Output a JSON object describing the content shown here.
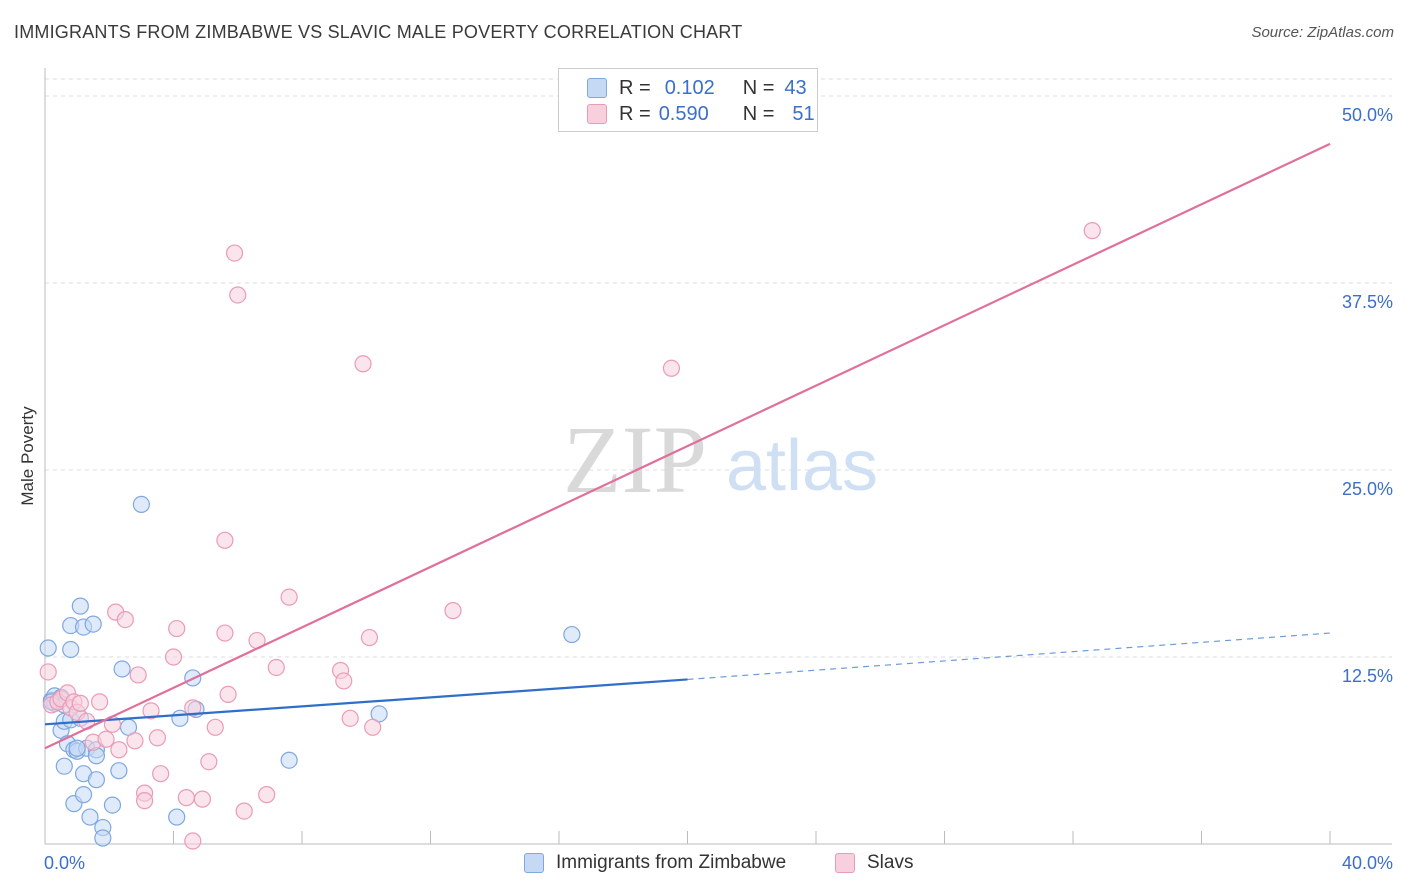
{
  "title": "IMMIGRANTS FROM ZIMBABWE VS SLAVIC MALE POVERTY CORRELATION CHART",
  "source": "Source: ZipAtlas.com",
  "watermark": {
    "zip": "ZIP",
    "atlas": "atlas"
  },
  "colors": {
    "blue_fill": "#c5d9f5",
    "blue_stroke": "#7fa8e0",
    "blue_line": "#2f6fc9",
    "pink_fill": "#f8cfdc",
    "pink_stroke": "#eb9bb5",
    "pink_line": "#e0709a",
    "tick_label": "#3b6fc9",
    "grid": "#dddddd"
  },
  "legend": {
    "rows": [
      {
        "r_label": "R =",
        "r_value": "0.102",
        "n_label": "N =",
        "n_value": "43",
        "series": "blue"
      },
      {
        "r_label": "R =",
        "r_value": "0.590",
        "n_label": "N =",
        "n_value": "51",
        "series": "pink"
      }
    ]
  },
  "chart_data": {
    "type": "scatter",
    "title": "IMMIGRANTS FROM ZIMBABWE VS SLAVIC MALE POVERTY CORRELATION CHART",
    "xlabel": "",
    "ylabel": "Male Poverty",
    "xlim": [
      0,
      40
    ],
    "ylim": [
      0,
      50
    ],
    "x_tick_labels": {
      "min": "0.0%",
      "max": "40.0%"
    },
    "y_ticks": [
      12.5,
      25.0,
      37.5,
      50.0
    ],
    "y_tick_labels": [
      "12.5%",
      "25.0%",
      "37.5%",
      "50.0%"
    ],
    "grid": true,
    "legend_position": "top-center",
    "series": [
      {
        "name": "Immigrants from Zimbabwe",
        "color": "blue",
        "points": [
          [
            0.1,
            13.1
          ],
          [
            0.2,
            9.6
          ],
          [
            0.3,
            9.4
          ],
          [
            0.3,
            9.9
          ],
          [
            0.5,
            9.8
          ],
          [
            0.5,
            7.6
          ],
          [
            0.6,
            8.2
          ],
          [
            0.6,
            5.2
          ],
          [
            0.7,
            6.7
          ],
          [
            0.8,
            13.0
          ],
          [
            0.8,
            14.6
          ],
          [
            0.8,
            8.3
          ],
          [
            0.9,
            6.3
          ],
          [
            0.9,
            2.7
          ],
          [
            1.0,
            6.2
          ],
          [
            1.1,
            15.9
          ],
          [
            1.1,
            8.4
          ],
          [
            1.2,
            14.5
          ],
          [
            1.2,
            3.3
          ],
          [
            1.2,
            4.7
          ],
          [
            1.3,
            6.4
          ],
          [
            1.4,
            1.8
          ],
          [
            1.5,
            14.7
          ],
          [
            1.6,
            6.3
          ],
          [
            1.6,
            5.9
          ],
          [
            1.6,
            4.3
          ],
          [
            1.8,
            1.1
          ],
          [
            1.8,
            0.4
          ],
          [
            2.1,
            2.6
          ],
          [
            2.3,
            4.9
          ],
          [
            2.4,
            11.7
          ],
          [
            2.6,
            7.8
          ],
          [
            3.0,
            22.7
          ],
          [
            4.1,
            1.8
          ],
          [
            4.2,
            8.4
          ],
          [
            4.6,
            11.1
          ],
          [
            4.7,
            9.0
          ],
          [
            7.6,
            5.6
          ],
          [
            10.4,
            8.7
          ],
          [
            16.4,
            14.0
          ],
          [
            0.2,
            9.5
          ],
          [
            1.0,
            6.4
          ],
          [
            0.6,
            9.3
          ]
        ],
        "trend": {
          "x0": 0,
          "y0": 8.0,
          "x1": 20,
          "y1": 11.0,
          "dash_x1": 40,
          "dash_y1": 14.1
        }
      },
      {
        "name": "Slavs",
        "color": "pink",
        "points": [
          [
            0.1,
            11.5
          ],
          [
            0.2,
            9.3
          ],
          [
            0.4,
            9.5
          ],
          [
            0.5,
            9.7
          ],
          [
            0.7,
            10.1
          ],
          [
            0.8,
            9.1
          ],
          [
            0.9,
            9.5
          ],
          [
            1.0,
            8.8
          ],
          [
            1.1,
            9.4
          ],
          [
            1.3,
            8.2
          ],
          [
            1.5,
            6.8
          ],
          [
            1.7,
            9.5
          ],
          [
            1.9,
            7.0
          ],
          [
            2.1,
            8.0
          ],
          [
            2.2,
            15.5
          ],
          [
            2.3,
            6.3
          ],
          [
            2.5,
            15.0
          ],
          [
            2.8,
            6.9
          ],
          [
            2.9,
            11.3
          ],
          [
            3.1,
            3.4
          ],
          [
            3.1,
            2.9
          ],
          [
            3.3,
            8.9
          ],
          [
            3.5,
            7.1
          ],
          [
            3.6,
            4.7
          ],
          [
            4.0,
            12.5
          ],
          [
            4.1,
            14.4
          ],
          [
            4.4,
            3.1
          ],
          [
            4.6,
            9.1
          ],
          [
            4.6,
            0.2
          ],
          [
            4.9,
            3.0
          ],
          [
            5.1,
            5.5
          ],
          [
            5.3,
            7.8
          ],
          [
            5.6,
            14.1
          ],
          [
            5.7,
            10.0
          ],
          [
            5.9,
            39.5
          ],
          [
            6.0,
            36.7
          ],
          [
            6.2,
            2.2
          ],
          [
            5.6,
            20.3
          ],
          [
            6.6,
            13.6
          ],
          [
            6.9,
            3.3
          ],
          [
            7.2,
            11.8
          ],
          [
            7.6,
            16.5
          ],
          [
            9.2,
            11.6
          ],
          [
            9.3,
            10.9
          ],
          [
            9.5,
            8.4
          ],
          [
            9.9,
            32.1
          ],
          [
            10.1,
            13.8
          ],
          [
            10.2,
            7.8
          ],
          [
            12.7,
            15.6
          ],
          [
            19.5,
            31.8
          ],
          [
            32.6,
            41.0
          ]
        ],
        "trend": {
          "x0": 0,
          "y0": 6.4,
          "x1": 40,
          "y1": 46.8
        }
      }
    ]
  },
  "bottom_legend": {
    "items": [
      {
        "label": "Immigrants from Zimbabwe",
        "series": "blue"
      },
      {
        "label": "Slavs",
        "series": "pink"
      }
    ]
  }
}
